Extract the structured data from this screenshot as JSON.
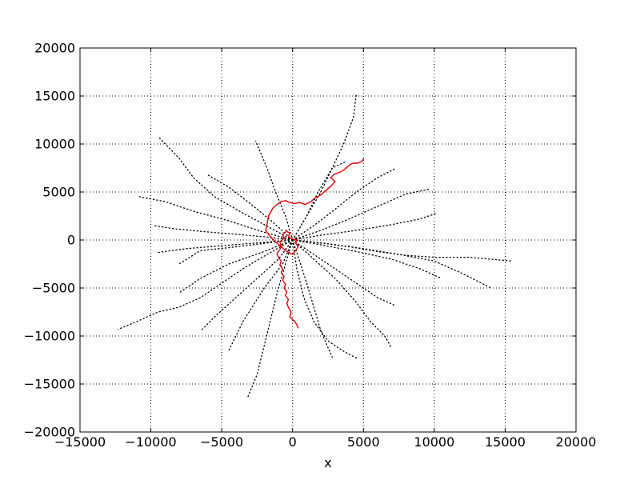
{
  "chart_data": {
    "type": "line",
    "title": "",
    "xlabel": "x",
    "ylabel": "",
    "xlim": [
      -15000,
      20000
    ],
    "ylim": [
      -20000,
      20000
    ],
    "x_ticks": [
      -15000,
      -10000,
      -5000,
      0,
      5000,
      10000,
      15000,
      20000
    ],
    "y_ticks": [
      -20000,
      -15000,
      -10000,
      -5000,
      0,
      5000,
      10000,
      15000,
      20000
    ],
    "x_tick_labels": [
      "−15000",
      "−10000",
      "−5000",
      "0",
      "5000",
      "10000",
      "15000",
      "20000"
    ],
    "y_tick_labels": [
      "−20000",
      "−15000",
      "−10000",
      "−5000",
      "0",
      "5000",
      "10000",
      "15000",
      "20000"
    ],
    "grid": true,
    "legend": "none",
    "colors": {
      "trails": "#000000",
      "highlight": "#e00000",
      "grid": "#000000"
    },
    "series": [
      {
        "style": "dotted",
        "color": "#000000",
        "x": [
          0,
          -1500,
          -3500,
          -5500,
          -7000,
          -8000,
          -9500
        ],
        "y": [
          0,
          1200,
          2800,
          4500,
          6500,
          8500,
          10800
        ]
      },
      {
        "style": "dotted",
        "color": "#000000",
        "x": [
          0,
          -2000,
          -4500,
          -7000,
          -9000,
          -10800
        ],
        "y": [
          0,
          800,
          2000,
          3000,
          4000,
          4500
        ]
      },
      {
        "style": "dotted",
        "color": "#000000",
        "x": [
          0,
          -1800,
          -4000,
          -6500,
          -8500,
          -9800
        ],
        "y": [
          0,
          300,
          600,
          900,
          1200,
          1500
        ]
      },
      {
        "style": "dotted",
        "color": "#000000",
        "x": [
          0,
          -2500,
          -5000,
          -7500,
          -9500
        ],
        "y": [
          0,
          -300,
          -600,
          -900,
          -1300
        ]
      },
      {
        "style": "dotted",
        "color": "#000000",
        "x": [
          0,
          -2000,
          -4500,
          -6500,
          -8000
        ],
        "y": [
          0,
          -1200,
          -2500,
          -4000,
          -5500
        ]
      },
      {
        "style": "dotted",
        "color": "#000000",
        "x": [
          0,
          -1800,
          -3500,
          -5000,
          -6500,
          -8000,
          -9500,
          -11000,
          -12300
        ],
        "y": [
          0,
          -1500,
          -3000,
          -4500,
          -6000,
          -7000,
          -7500,
          -8500,
          -9300
        ]
      },
      {
        "style": "dotted",
        "color": "#000000",
        "x": [
          0,
          -1000,
          -2500,
          -4000,
          -5500,
          -6500
        ],
        "y": [
          0,
          -2000,
          -4000,
          -6000,
          -8000,
          -9500
        ]
      },
      {
        "style": "dotted",
        "color": "#000000",
        "x": [
          0,
          -500,
          -1000,
          -1500,
          -2000,
          -2500,
          -3200
        ],
        "y": [
          0,
          -2500,
          -5000,
          -8000,
          -11000,
          -14000,
          -16500
        ]
      },
      {
        "style": "dotted",
        "color": "#000000",
        "x": [
          0,
          -700,
          -2000,
          -3500,
          -4500
        ],
        "y": [
          0,
          -2500,
          -5000,
          -8500,
          -11500
        ]
      },
      {
        "style": "dotted",
        "color": "#000000",
        "x": [
          0,
          300,
          800,
          1500,
          2500,
          3500,
          4500
        ],
        "y": [
          0,
          -3000,
          -6000,
          -8500,
          -10500,
          -11500,
          -12300
        ]
      },
      {
        "style": "dotted",
        "color": "#000000",
        "x": [
          0,
          1500,
          3000,
          4500,
          5500,
          6500,
          7000
        ],
        "y": [
          0,
          -2000,
          -4000,
          -6500,
          -8500,
          -10000,
          -11300
        ]
      },
      {
        "style": "dotted",
        "color": "#000000",
        "x": [
          0,
          1500,
          3000,
          4500,
          6000,
          7200
        ],
        "y": [
          0,
          -1500,
          -3000,
          -4500,
          -6000,
          -6800
        ]
      },
      {
        "style": "dotted",
        "color": "#000000",
        "x": [
          0,
          2000,
          4500,
          7000,
          9000,
          10500
        ],
        "y": [
          0,
          -500,
          -1200,
          -2000,
          -3000,
          -4000
        ]
      },
      {
        "style": "dotted",
        "color": "#000000",
        "x": [
          0,
          2000,
          4000,
          6000,
          8000,
          10000,
          12500,
          14000,
          15500
        ],
        "y": [
          0,
          -300,
          -700,
          -1200,
          -1600,
          -1800,
          -1800,
          -2000,
          -2200
        ]
      },
      {
        "style": "dotted",
        "color": "#000000",
        "x": [
          0,
          2500,
          5000,
          7500,
          10000,
          12000,
          14000
        ],
        "y": [
          0,
          -400,
          -900,
          -1500,
          -2200,
          -3500,
          -5000
        ]
      },
      {
        "style": "dotted",
        "color": "#000000",
        "x": [
          0,
          2000,
          4500,
          7000,
          9000,
          10200
        ],
        "y": [
          0,
          500,
          1000,
          1600,
          2200,
          2800
        ]
      },
      {
        "style": "dotted",
        "color": "#000000",
        "x": [
          0,
          2000,
          4000,
          6000,
          8000,
          9700
        ],
        "y": [
          0,
          1000,
          2200,
          3500,
          4800,
          5300
        ]
      },
      {
        "style": "dotted",
        "color": "#000000",
        "x": [
          0,
          1500,
          3000,
          4500,
          6000,
          7200
        ],
        "y": [
          0,
          1500,
          3200,
          5000,
          6500,
          7400
        ]
      },
      {
        "style": "dotted",
        "color": "#000000",
        "x": [
          0,
          1000,
          2000,
          2800,
          3600,
          4300,
          4500
        ],
        "y": [
          0,
          2500,
          5000,
          7500,
          10000,
          12800,
          15200
        ]
      },
      {
        "style": "dotted",
        "color": "#000000",
        "x": [
          0,
          -500,
          -1200,
          -1800,
          -2600
        ],
        "y": [
          0,
          2500,
          5000,
          7500,
          10300
        ]
      },
      {
        "style": "dotted",
        "color": "#000000",
        "x": [
          0,
          -1500,
          -3000,
          -4500,
          -6000
        ],
        "y": [
          0,
          2000,
          3800,
          5500,
          6800
        ]
      },
      {
        "style": "dotted",
        "color": "#000000",
        "x": [
          0,
          -1200,
          -2800,
          -4500,
          -6500,
          -8000
        ],
        "y": [
          0,
          -200,
          -500,
          -800,
          -1100,
          -2500
        ]
      },
      {
        "style": "dotted",
        "color": "#000000",
        "x": [
          0,
          500,
          1000,
          1500,
          2000,
          2800
        ],
        "y": [
          0,
          -2200,
          -4500,
          -7000,
          -9500,
          -12200
        ]
      },
      {
        "style": "dotted",
        "color": "#000000",
        "x": [
          0,
          1000,
          1800,
          2800,
          3800
        ],
        "y": [
          0,
          2500,
          5000,
          7500,
          8200
        ]
      }
    ],
    "highlight_series": {
      "style": "solid",
      "color": "#e00000",
      "x": [
        400,
        300,
        100,
        -200,
        -100,
        -300,
        -400,
        -300,
        -500,
        -400,
        -600,
        -500,
        -700,
        -600,
        -800,
        -700,
        -900,
        -800,
        -1000,
        -1100,
        -900,
        -800,
        -900,
        -600,
        -700,
        -400,
        -500,
        -200,
        -300,
        0,
        300,
        200,
        400,
        200,
        0,
        -400,
        -800,
        -1200,
        -1600,
        -1900,
        -1800,
        -1700,
        -1400,
        -1100,
        -800,
        -500,
        -200,
        100,
        500,
        900,
        1300,
        1600,
        2000,
        2300,
        2700,
        3000,
        2700,
        2900,
        3200,
        3400,
        3700,
        4100,
        4300,
        4600,
        4900,
        5000,
        5000
      ],
      "y": [
        -9200,
        -8800,
        -8400,
        -8000,
        -7500,
        -7000,
        -6600,
        -6200,
        -5800,
        -5400,
        -5000,
        -4600,
        -4200,
        -3800,
        -3400,
        -3000,
        -2600,
        -2200,
        -1800,
        -1400,
        -1000,
        -600,
        -200,
        200,
        600,
        900,
        1000,
        700,
        300,
        100,
        0,
        -300,
        -700,
        -1100,
        -1500,
        -1200,
        -700,
        -200,
        400,
        1000,
        1700,
        2500,
        3300,
        3700,
        4000,
        4100,
        3900,
        3800,
        3900,
        3700,
        4000,
        4400,
        4700,
        5100,
        5600,
        6100,
        6500,
        6800,
        7000,
        7100,
        7400,
        7900,
        8000,
        8000,
        8200,
        8400,
        8500
      ]
    }
  }
}
